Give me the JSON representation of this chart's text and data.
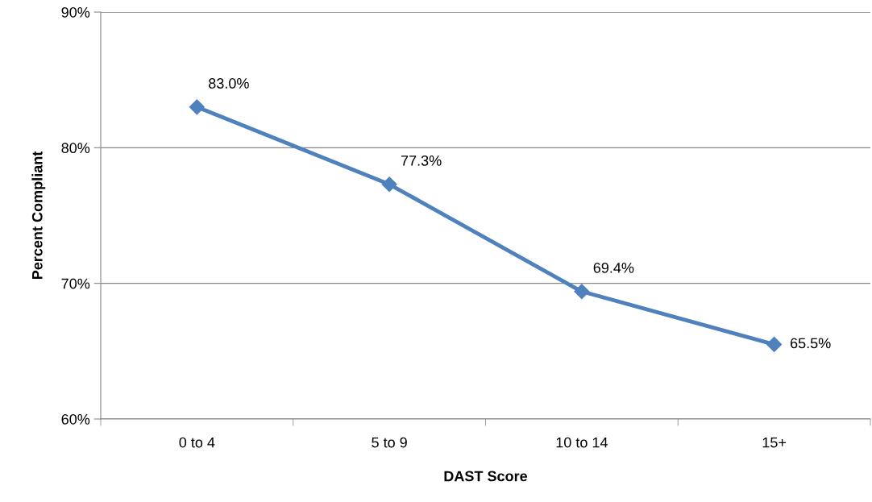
{
  "chart_data": {
    "type": "line",
    "xlabel": "DAST Score",
    "ylabel": "Percent Compliant",
    "categories": [
      "0 to 4",
      "5 to 9",
      "10 to 14",
      "15+"
    ],
    "series": [
      {
        "color": "#4f81bd",
        "values": [
          83.0,
          77.3,
          69.4,
          65.5
        ],
        "value_labels": [
          "83.0%",
          "77.3%",
          "69.4%",
          "65.5%"
        ]
      }
    ],
    "ylim": [
      60,
      90
    ],
    "yticks": [
      {
        "value": 60,
        "label": "60%"
      },
      {
        "value": 70,
        "label": "70%"
      },
      {
        "value": 80,
        "label": "80%"
      },
      {
        "value": 90,
        "label": "90%"
      }
    ],
    "grid": "y",
    "marker": "diamond",
    "line_style": "solid",
    "legend": false
  }
}
